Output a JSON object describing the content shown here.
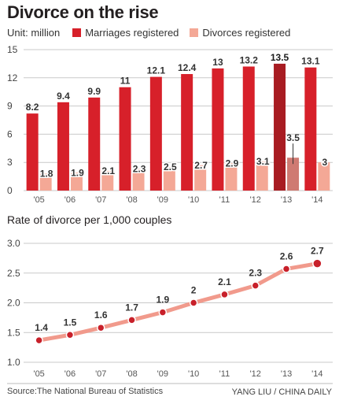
{
  "title": "Divorce on the rise",
  "source": "Source:The National Bureau of Statistics",
  "credit": "YANG LIU / CHINA DAILY",
  "colors": {
    "marriages": "#d7202a",
    "marriages_highlight": "#a81c22",
    "divorces": "#f4a896",
    "divorces_highlight": "#cf7a72",
    "line": "#f19a8c",
    "line_marker": "#c8202a"
  },
  "chart_data": [
    {
      "type": "bar",
      "unit_label": "Unit: million",
      "categories": [
        "'05",
        "'06",
        "'07",
        "'08",
        "'09",
        "'10",
        "'11",
        "'12",
        "'13",
        "'14"
      ],
      "series": [
        {
          "name": "Marriages registered",
          "values": [
            8.2,
            9.4,
            9.9,
            11,
            12.1,
            12.4,
            13,
            13.2,
            13.5,
            13.1
          ],
          "labels": [
            "8.2",
            "9.4",
            "9.9",
            "11",
            "12.1",
            "12.4",
            "13",
            "13.2",
            "13.5",
            "13.1"
          ]
        },
        {
          "name": "Divorces registered",
          "values": [
            1.8,
            1.9,
            2.1,
            2.3,
            2.5,
            2.7,
            2.9,
            3.1,
            3.5,
            3
          ],
          "labels": [
            "1.8",
            "1.9",
            "2.1",
            "2.3",
            "2.5",
            "2.7",
            "2.9",
            "3.1",
            "3.5",
            "3"
          ]
        }
      ],
      "highlight": "'13",
      "ylim": [
        0,
        15
      ],
      "yticks": [
        "0",
        "3",
        "6",
        "9",
        "12",
        "15"
      ],
      "grid": true
    },
    {
      "type": "line",
      "title": "Rate of divorce per 1,000 couples",
      "categories": [
        "'05",
        "'06",
        "'07",
        "'08",
        "'09",
        "'10",
        "'11",
        "'12",
        "'13",
        "'14"
      ],
      "values": [
        1.4,
        1.5,
        1.6,
        1.7,
        1.9,
        2,
        2.1,
        2.3,
        2.6,
        2.7
      ],
      "labels": [
        "1.4",
        "1.5",
        "1.6",
        "1.7",
        "1.9",
        "2",
        "2.1",
        "2.3",
        "2.6",
        "2.7"
      ],
      "plotted_values": [
        1.37,
        1.46,
        1.58,
        1.71,
        1.84,
        2.0,
        2.14,
        2.29,
        2.57,
        2.66
      ],
      "highlight": "'14",
      "ylim": [
        1.0,
        3.0
      ],
      "yticks": [
        "1.0",
        "1.5",
        "2.0",
        "2.5",
        "3.0"
      ],
      "grid": true
    }
  ]
}
